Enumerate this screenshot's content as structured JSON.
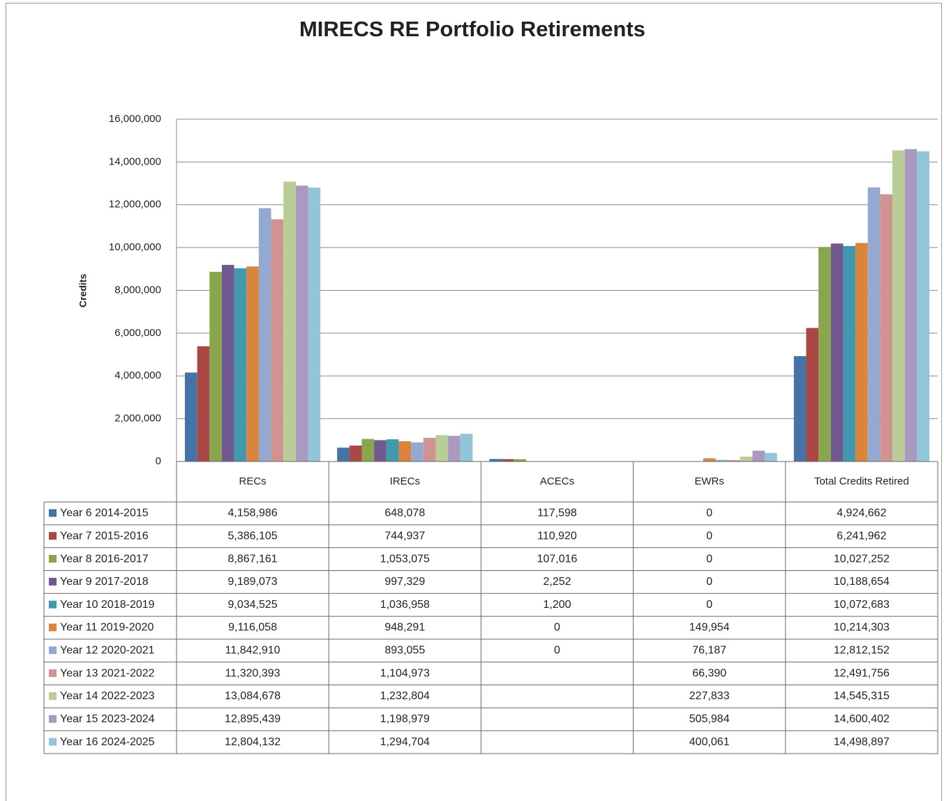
{
  "chart_data": {
    "type": "bar",
    "title": "MIRECS RE Portfolio Retirements",
    "y_label": "Credits",
    "categories": [
      "RECs",
      "IRECs",
      "ACECs",
      "EWRs",
      "Total Credits Retired"
    ],
    "ylim": [
      0,
      16000000
    ],
    "yticks": [
      0,
      {
        "value": 2000000,
        "label": "2,000,000"
      },
      {
        "value": 4000000,
        "label": "4,000,000"
      },
      {
        "value": 6000000,
        "label": "6,000,000"
      },
      {
        "value": 8000000,
        "label": "8,000,000"
      },
      {
        "value": 10000000,
        "label": "10,000,000"
      },
      {
        "value": 12000000,
        "label": "12,000,000"
      },
      {
        "value": 14000000,
        "label": "14,000,000"
      },
      {
        "value": 16000000,
        "label": "16,000,000"
      }
    ],
    "grid": true,
    "series": [
      {
        "name": "Year 6 2014-2015",
        "color": "#4572a7",
        "values": [
          4158986,
          648078,
          117598,
          0,
          4924662
        ],
        "value_labels": [
          "4,158,986",
          "648,078",
          "117,598",
          "0",
          "4,924,662"
        ]
      },
      {
        "name": "Year 7 2015-2016",
        "color": "#aa4643",
        "values": [
          5386105,
          744937,
          110920,
          0,
          6241962
        ],
        "value_labels": [
          "5,386,105",
          "744,937",
          "110,920",
          "0",
          "6,241,962"
        ]
      },
      {
        "name": "Year 8 2016-2017",
        "color": "#89a54e",
        "values": [
          8867161,
          1053075,
          107016,
          0,
          10027252
        ],
        "value_labels": [
          "8,867,161",
          "1,053,075",
          "107,016",
          "0",
          "10,027,252"
        ]
      },
      {
        "name": "Year 9 2017-2018",
        "color": "#71588f",
        "values": [
          9189073,
          997329,
          2252,
          0,
          10188654
        ],
        "value_labels": [
          "9,189,073",
          "997,329",
          "2,252",
          "0",
          "10,188,654"
        ]
      },
      {
        "name": "Year 10 2018-2019",
        "color": "#4198af",
        "values": [
          9034525,
          1036958,
          1200,
          0,
          10072683
        ],
        "value_labels": [
          "9,034,525",
          "1,036,958",
          "1,200",
          "0",
          "10,072,683"
        ]
      },
      {
        "name": "Year 11 2019-2020",
        "color": "#db843d",
        "values": [
          9116058,
          948291,
          0,
          149954,
          10214303
        ],
        "value_labels": [
          "9,116,058",
          "948,291",
          "0",
          "149,954",
          "10,214,303"
        ]
      },
      {
        "name": "Year 12 2020-2021",
        "color": "#93a9cf",
        "values": [
          11842910,
          893055,
          0,
          76187,
          12812152
        ],
        "value_labels": [
          "11,842,910",
          "893,055",
          "0",
          "76,187",
          "12,812,152"
        ]
      },
      {
        "name": "Year 13 2021-2022",
        "color": "#d19392",
        "values": [
          11320393,
          1104973,
          null,
          66390,
          12491756
        ],
        "value_labels": [
          "11,320,393",
          "1,104,973",
          null,
          "66,390",
          "12,491,756"
        ]
      },
      {
        "name": "Year 14 2022-2023",
        "color": "#b9cd96",
        "values": [
          13084678,
          1232804,
          null,
          227833,
          14545315
        ],
        "value_labels": [
          "13,084,678",
          "1,232,804",
          null,
          "227,833",
          "14,545,315"
        ]
      },
      {
        "name": "Year 15 2023-2024",
        "color": "#a99bbd",
        "values": [
          12895439,
          1198979,
          null,
          505984,
          14600402
        ],
        "value_labels": [
          "12,895,439",
          "1,198,979",
          null,
          "505,984",
          "14,600,402"
        ]
      },
      {
        "name": "Year 16 2024-2025",
        "color": "#92c5d7",
        "values": [
          12804132,
          1294704,
          null,
          400061,
          14498897
        ],
        "value_labels": [
          "12,804,132",
          "1,294,704",
          null,
          "400,061",
          "14,498,897"
        ]
      }
    ]
  }
}
